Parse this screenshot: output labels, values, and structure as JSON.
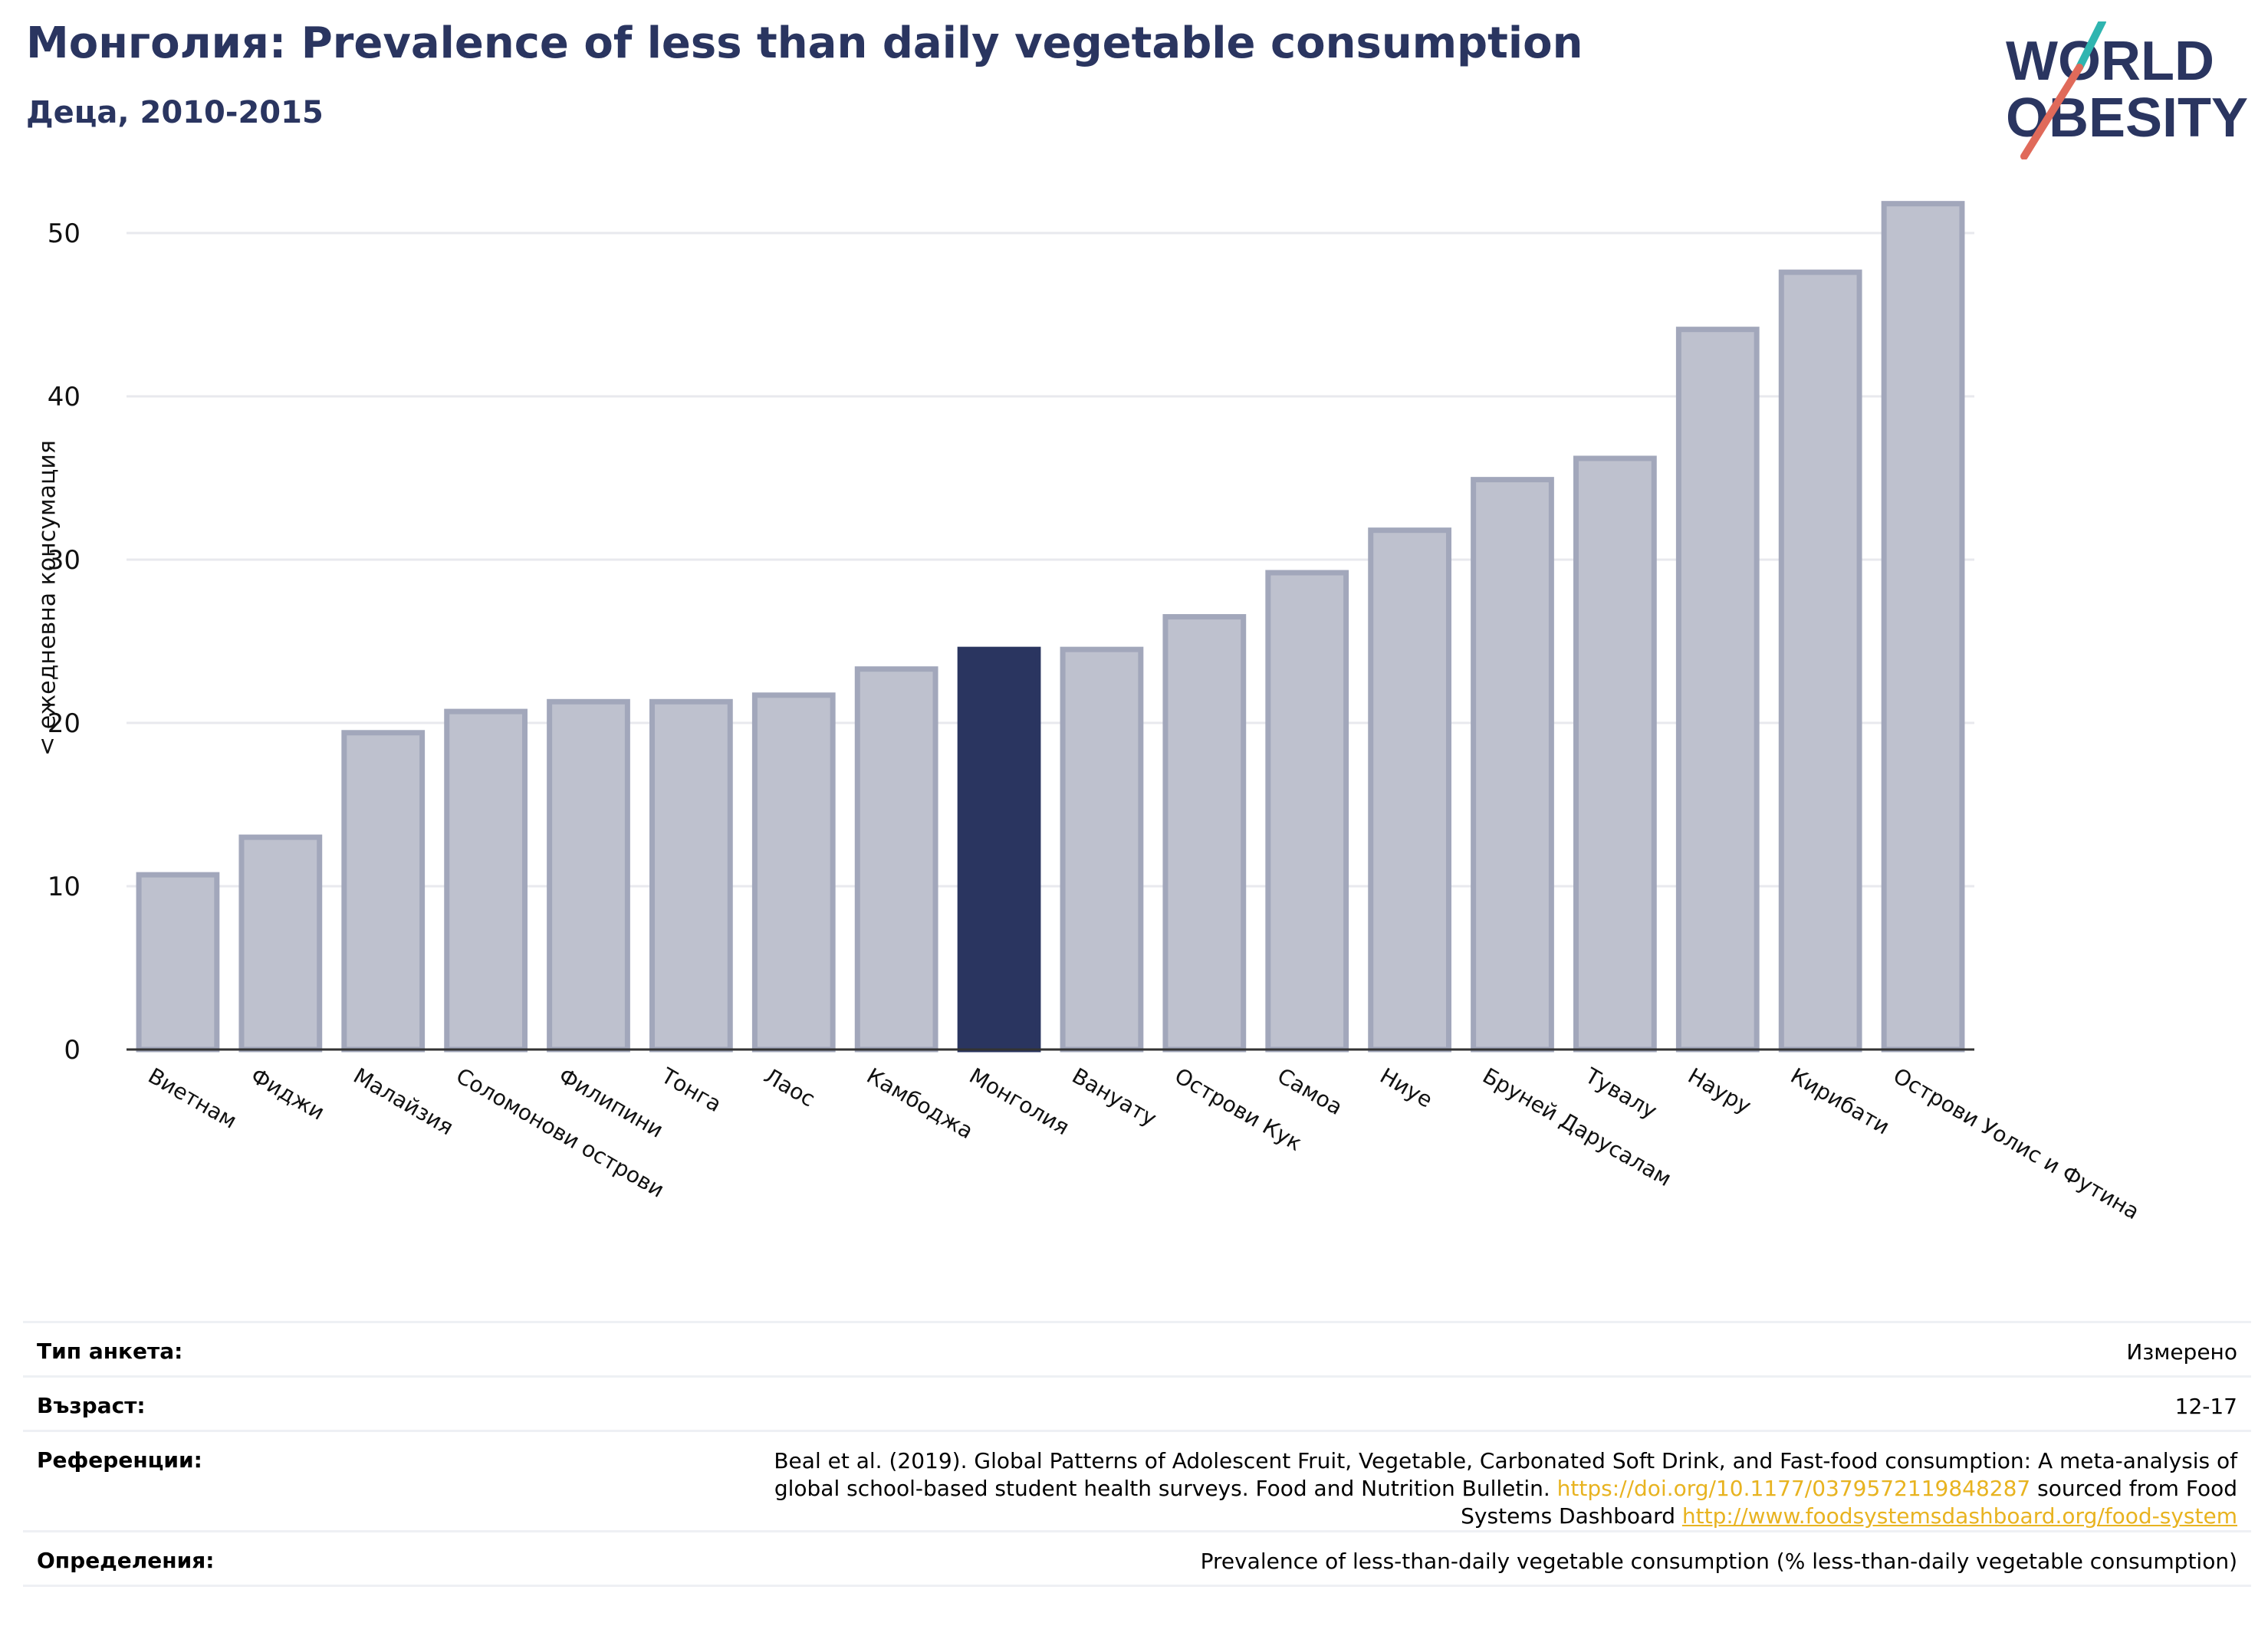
{
  "header": {
    "title": "Монголия: Prevalence of less than daily vegetable consumption",
    "subtitle": "Деца, 2010-2015"
  },
  "logo": {
    "line1": "WORLD",
    "line2": "OBESITY"
  },
  "colors": {
    "highlight": "#2a3560",
    "bar": "#bec1ce",
    "bar_edge": "#a2a7bb",
    "grid": "#e8e9ee",
    "link": "#e8b320"
  },
  "chart_data": {
    "type": "bar",
    "title": "Монголия: Prevalence of less than daily vegetable consumption",
    "subtitle": "Деца, 2010-2015",
    "xlabel": "",
    "ylabel": "< ежедневна консумация",
    "ylim": [
      0,
      53
    ],
    "yticks": [
      0,
      10,
      20,
      30,
      40,
      50
    ],
    "grid": true,
    "highlight": "Монголия",
    "categories": [
      "Виетнам",
      "Фиджи",
      "Малайзия",
      "Соломонови острови",
      "Филипини",
      "Тонга",
      "Лаос",
      "Камбоджа",
      "Монголия",
      "Вануату",
      "Острови Кук",
      "Самоа",
      "Ниуе",
      "Бруней Дарусалам",
      "Тувалу",
      "Науру",
      "Кирибати",
      "Острови Уолис и Футина"
    ],
    "values": [
      10.7,
      13.0,
      19.4,
      20.7,
      21.3,
      21.3,
      21.7,
      23.3,
      24.5,
      24.5,
      26.5,
      29.2,
      31.8,
      34.9,
      36.2,
      44.1,
      47.6,
      51.8
    ]
  },
  "info": {
    "survey_type_label": "Тип анкета:",
    "survey_type_value": "Измерено",
    "age_label": "Възраст:",
    "age_value": "12-17",
    "references_label": "Референции:",
    "references_line1": "Beal et al. (2019). Global Patterns of Adolescent Fruit, Vegetable, Carbonated Soft Drink, and Fast-food consumption: A meta-analysis of",
    "references_line2_a": "global school-based student health surveys. Food and Nutrition Bulletin. ",
    "references_link1": "https://doi.org/10.1177/0379572119848287",
    "references_line2_b": " sourced from Food",
    "references_line3_a": "Systems Dashboard ",
    "references_link2": "http://www.foodsystemsdashboard.org/food-system",
    "definitions_label": "Определения:",
    "definitions_value": "Prevalence of less-than-daily vegetable consumption (% less-than-daily vegetable consumption)"
  }
}
